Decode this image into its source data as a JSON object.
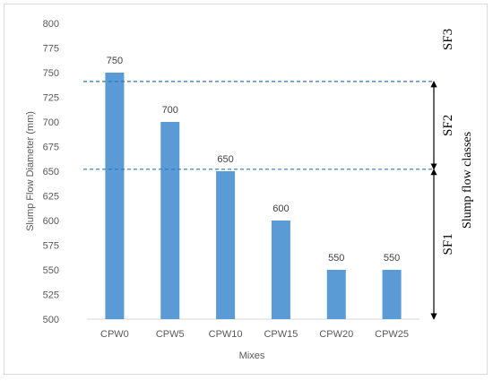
{
  "chart_data": {
    "type": "bar",
    "title": "",
    "xlabel": "Mixes",
    "ylabel": "Slump Flow Diameter (mm)",
    "categories": [
      "CPW0",
      "CPW5",
      "CPW10",
      "CPW15",
      "CPW20",
      "CPW25"
    ],
    "values": [
      750,
      700,
      650,
      600,
      550,
      550
    ],
    "data_labels": [
      "750",
      "700",
      "650",
      "600",
      "550",
      "550"
    ],
    "ylim": [
      500,
      800
    ],
    "yticks": [
      500,
      525,
      550,
      575,
      600,
      625,
      650,
      675,
      700,
      725,
      750,
      775,
      800
    ],
    "grid": false,
    "legend": "none",
    "bar_color": "#5b9bd5",
    "reference_lines": [
      {
        "value": 741,
        "style": "dashed",
        "color": "#2e75b6"
      },
      {
        "value": 652,
        "style": "dashed",
        "color": "#2e75b6"
      }
    ],
    "classes": {
      "title": "Slump flow classes",
      "items": [
        {
          "label": "SF1",
          "range": [
            500,
            652
          ]
        },
        {
          "label": "SF2",
          "range": [
            652,
            741
          ]
        },
        {
          "label": "SF3",
          "range": [
            741,
            800
          ]
        }
      ]
    }
  }
}
